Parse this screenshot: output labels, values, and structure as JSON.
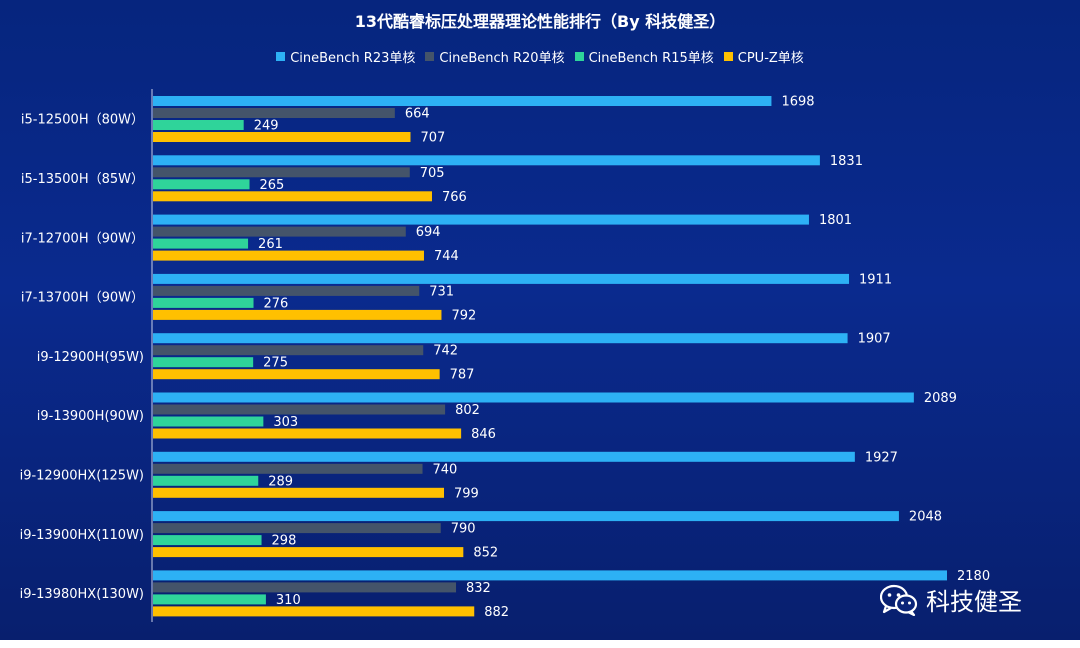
{
  "chart_data": {
    "type": "bar",
    "orientation": "horizontal",
    "title": "13代酷睿标压处理器理论性能排行（By 科技健圣）",
    "categories": [
      "i5-12500H（80W）",
      "i5-13500H（85W）",
      "i7-12700H（90W）",
      "i7-13700H（90W）",
      "i9-12900H(95W)",
      "i9-13900H(90W)",
      "i9-12900HX(125W)",
      "i9-13900HX(110W)",
      "i9-13980HX(130W)"
    ],
    "series": [
      {
        "name": "CineBench R23单核",
        "color": "#2db1f5",
        "values": [
          1698,
          1831,
          1801,
          1911,
          1907,
          2089,
          1927,
          2048,
          2180
        ]
      },
      {
        "name": "CineBench R20单核",
        "color": "#44546a",
        "values": [
          664,
          705,
          694,
          731,
          742,
          802,
          740,
          790,
          832
        ]
      },
      {
        "name": "CineBench R15单核",
        "color": "#2fd49a",
        "values": [
          249,
          265,
          261,
          276,
          275,
          303,
          289,
          298,
          310
        ]
      },
      {
        "name": "CPU-Z单核",
        "color": "#ffc000",
        "values": [
          707,
          766,
          744,
          792,
          787,
          846,
          799,
          852,
          882
        ]
      }
    ],
    "xlim": [
      0,
      2400
    ],
    "grid": false,
    "legend_position": "top"
  },
  "watermark": {
    "icon": "wechat-icon",
    "text": "科技健圣"
  }
}
